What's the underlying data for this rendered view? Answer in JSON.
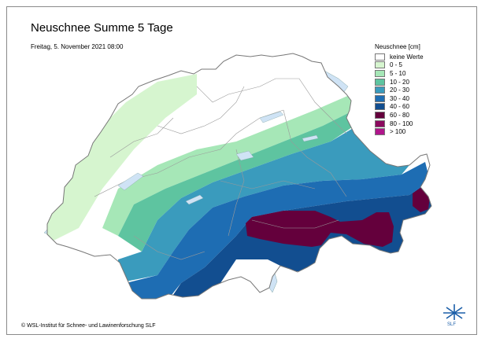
{
  "title": "Neuschnee Summe 5 Tage",
  "subtitle": "Freitag, 5. November 2021 08:00",
  "legend": {
    "title": "Neuschnee [cm]",
    "items": [
      {
        "label": "keine Werte",
        "color": "#ffffff"
      },
      {
        "label": "0 - 5",
        "color": "#d6f5cf"
      },
      {
        "label": "5 - 10",
        "color": "#a6e7b7"
      },
      {
        "label": "10 - 20",
        "color": "#5ec4a0"
      },
      {
        "label": "20 - 30",
        "color": "#3a9bbd"
      },
      {
        "label": "30 - 40",
        "color": "#1e6db3"
      },
      {
        "label": "40 - 60",
        "color": "#124e90"
      },
      {
        "label": "60 - 80",
        "color": "#64003c"
      },
      {
        "label": "80 - 100",
        "color": "#8b0a5e"
      },
      {
        "label": "> 100",
        "color": "#b0168c"
      }
    ]
  },
  "copyright": "© WSL-Institut für Schnee- und Lawinenforschung SLF",
  "logo": {
    "icon": "snowflake-logo-icon",
    "text": "SLF"
  }
}
